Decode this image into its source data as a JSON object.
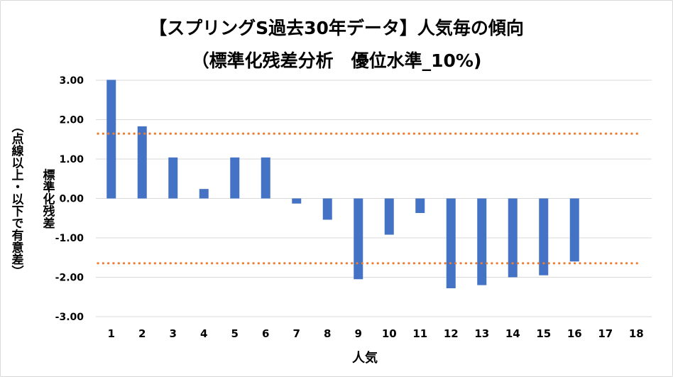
{
  "chart_data": {
    "type": "bar",
    "title_line1": "【スプリングS過去30年データ】人気毎の傾向",
    "title_line2": "（標準化残差分析　優位水準_10%)",
    "ylabel": "標準化残差",
    "ylabel_note": "（点線以上・以下で有意差）",
    "xlabel": "人気",
    "categories": [
      "1",
      "2",
      "3",
      "4",
      "5",
      "6",
      "7",
      "8",
      "9",
      "10",
      "11",
      "12",
      "13",
      "14",
      "15",
      "16",
      "17",
      "18"
    ],
    "values": [
      3.01,
      1.83,
      1.04,
      0.24,
      1.04,
      1.04,
      -0.13,
      -0.54,
      -2.05,
      -0.92,
      -0.37,
      -2.28,
      -2.2,
      -2.0,
      -1.95,
      -1.6,
      null,
      null
    ],
    "ylim": [
      -3.0,
      3.0
    ],
    "yticks": [
      3.0,
      2.0,
      1.0,
      0.0,
      -1.0,
      -2.0,
      -3.0
    ],
    "ytick_labels": [
      "3.00",
      "2.00",
      "1.00",
      "0.00",
      "-1.00",
      "-2.00",
      "-3.00"
    ],
    "threshold_lines": [
      1.645,
      -1.645
    ],
    "grid": true,
    "legend": "none",
    "bar_color": "#4472C4",
    "threshold_color": "#ED7D31",
    "grid_color": "#d9d9d9"
  }
}
